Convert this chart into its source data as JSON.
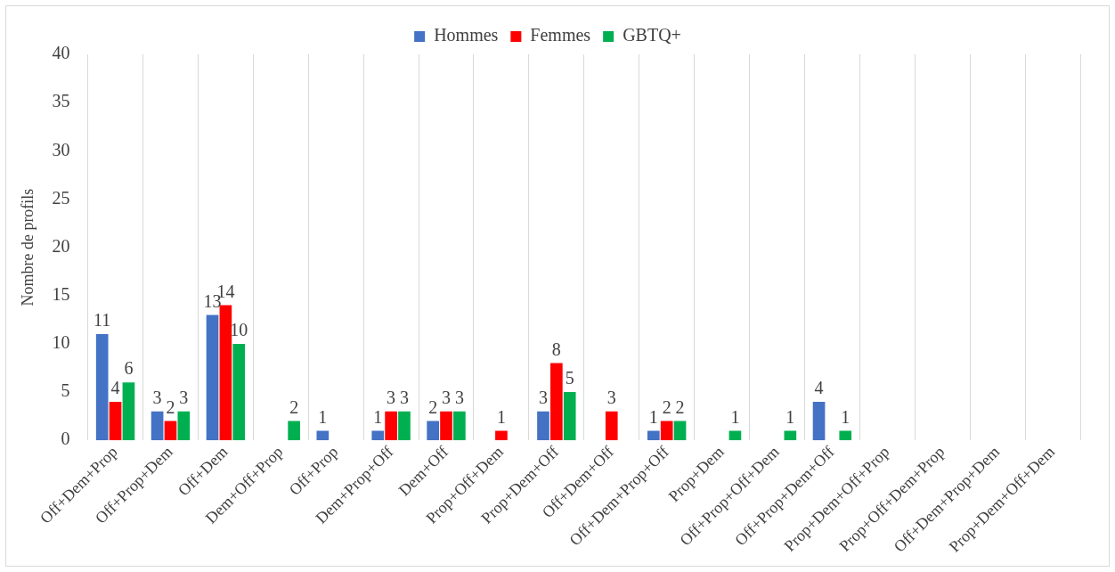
{
  "chart_data": {
    "type": "bar",
    "ylabel": "Nombre de profils",
    "categories": [
      "Off+Dem+Prop",
      "Off+Prop+Dem",
      "Off+Dem",
      "Dem+Off+Prop",
      "Off+Prop",
      "Dem+Prop+Off",
      "Dem+Off",
      "Prop+Off+Dem",
      "Prop+Dem+Off",
      "Off+Dem+Off",
      "Off+Dem+Prop+Off",
      "Prop+Dem",
      "Off+Prop+Off+Dem",
      "Off+Prop+Dem+Off",
      "Prop+Dem+Off+Prop",
      "Prop+Off+Dem+Prop",
      "Off+Dem+Prop+Dem",
      "Prop+Dem+Off+Dem"
    ],
    "series": [
      {
        "name": "Hommes",
        "color": "#4472c4",
        "values": [
          11,
          3,
          13,
          0,
          1,
          1,
          2,
          0,
          3,
          0,
          1,
          0,
          0,
          4,
          0,
          0,
          0,
          0
        ],
        "value_labels": [
          "11",
          "3",
          "13",
          null,
          "1",
          "1",
          "2",
          null,
          "3",
          null,
          "1",
          null,
          null,
          "4",
          null,
          null,
          null,
          null
        ]
      },
      {
        "name": "Femmes",
        "color": "#ff0000",
        "values": [
          4,
          2,
          14,
          0,
          0,
          3,
          3,
          1,
          8,
          3,
          2,
          0,
          0,
          0,
          0,
          0,
          0,
          0
        ],
        "value_labels": [
          "4",
          "2",
          "14",
          null,
          null,
          "3",
          "3",
          "1",
          "8",
          "3",
          "2",
          null,
          null,
          null,
          null,
          null,
          null,
          null
        ]
      },
      {
        "name": "GBTQ+",
        "color": "#00b050",
        "values": [
          6,
          3,
          10,
          2,
          0,
          3,
          3,
          0,
          5,
          0,
          2,
          1,
          1,
          1,
          0,
          0,
          0,
          0
        ],
        "value_labels": [
          "6",
          "3",
          "10",
          "2",
          null,
          "3",
          "3",
          null,
          "5",
          null,
          "2",
          "1",
          "1",
          "1",
          null,
          null,
          null,
          null
        ]
      }
    ],
    "ylim": [
      0,
      40
    ],
    "yticks": [
      0,
      5,
      10,
      15,
      20,
      25,
      30,
      35,
      40
    ],
    "grid": "x",
    "legend": "top"
  }
}
